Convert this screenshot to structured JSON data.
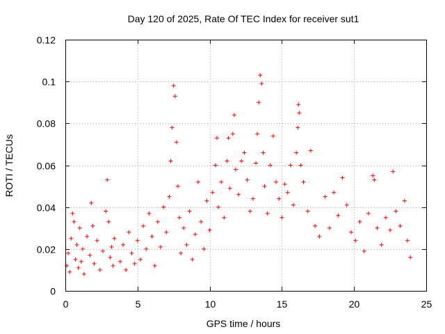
{
  "chart_data": {
    "type": "scatter",
    "title": "Day 120 of 2025, Rate Of TEC Index for receiver sut1",
    "xlabel": "GPS time / hours",
    "ylabel": "ROTI / TECUs",
    "xlim": [
      0,
      25
    ],
    "ylim": [
      0,
      0.12
    ],
    "x_ticks": [
      0,
      5,
      10,
      15,
      20,
      25
    ],
    "x_tick_labels": [
      "0",
      "5",
      "10",
      "15",
      "20",
      "25"
    ],
    "y_ticks": [
      0,
      0.02,
      0.04,
      0.06,
      0.08,
      0.1,
      0.12
    ],
    "y_tick_labels": [
      "0",
      "0.02",
      "0.04",
      "0.06",
      "0.08",
      "0.1",
      "0.12"
    ],
    "grid": true,
    "marker": "+",
    "series_color": "#ff0000",
    "series": [
      {
        "name": "ROTI",
        "points": [
          [
            0.1,
            0.012
          ],
          [
            0.2,
            0.018
          ],
          [
            0.3,
            0.009
          ],
          [
            0.4,
            0.025
          ],
          [
            0.5,
            0.037
          ],
          [
            0.6,
            0.033
          ],
          [
            0.7,
            0.015
          ],
          [
            0.8,
            0.022
          ],
          [
            0.9,
            0.011
          ],
          [
            1.0,
            0.03
          ],
          [
            1.1,
            0.014
          ],
          [
            1.2,
            0.02
          ],
          [
            1.3,
            0.008
          ],
          [
            1.5,
            0.026
          ],
          [
            1.7,
            0.017
          ],
          [
            1.8,
            0.042
          ],
          [
            1.9,
            0.031
          ],
          [
            2.0,
            0.013
          ],
          [
            2.2,
            0.024
          ],
          [
            2.4,
            0.01
          ],
          [
            2.6,
            0.019
          ],
          [
            2.8,
            0.038
          ],
          [
            2.9,
            0.053
          ],
          [
            3.0,
            0.033
          ],
          [
            3.1,
            0.016
          ],
          [
            3.2,
            0.021
          ],
          [
            3.3,
            0.012
          ],
          [
            3.4,
            0.025
          ],
          [
            3.8,
            0.014
          ],
          [
            4.0,
            0.022
          ],
          [
            4.2,
            0.01
          ],
          [
            4.4,
            0.028
          ],
          [
            4.6,
            0.018
          ],
          [
            4.8,
            0.013
          ],
          [
            5.0,
            0.024
          ],
          [
            5.2,
            0.015
          ],
          [
            5.4,
            0.031
          ],
          [
            5.6,
            0.02
          ],
          [
            5.8,
            0.037
          ],
          [
            6.0,
            0.026
          ],
          [
            6.2,
            0.012
          ],
          [
            6.4,
            0.033
          ],
          [
            6.6,
            0.021
          ],
          [
            6.8,
            0.04
          ],
          [
            7.0,
            0.028
          ],
          [
            7.2,
            0.045
          ],
          [
            7.3,
            0.062
          ],
          [
            7.4,
            0.078
          ],
          [
            7.5,
            0.098
          ],
          [
            7.6,
            0.093
          ],
          [
            7.7,
            0.071
          ],
          [
            7.8,
            0.05
          ],
          [
            7.9,
            0.035
          ],
          [
            8.0,
            0.018
          ],
          [
            8.2,
            0.03
          ],
          [
            8.4,
            0.022
          ],
          [
            8.6,
            0.038
          ],
          [
            8.8,
            0.015
          ],
          [
            9.0,
            0.027
          ],
          [
            9.2,
            0.052
          ],
          [
            9.4,
            0.033
          ],
          [
            9.6,
            0.02
          ],
          [
            9.8,
            0.043
          ],
          [
            10.0,
            0.029
          ],
          [
            10.2,
            0.047
          ],
          [
            10.4,
            0.06
          ],
          [
            10.5,
            0.073
          ],
          [
            10.6,
            0.04
          ],
          [
            10.8,
            0.052
          ],
          [
            11.0,
            0.035
          ],
          [
            11.2,
            0.062
          ],
          [
            11.3,
            0.073
          ],
          [
            11.4,
            0.049
          ],
          [
            11.6,
            0.075
          ],
          [
            11.7,
            0.084
          ],
          [
            11.8,
            0.058
          ],
          [
            12.0,
            0.046
          ],
          [
            12.2,
            0.062
          ],
          [
            12.4,
            0.066
          ],
          [
            12.6,
            0.053
          ],
          [
            12.8,
            0.038
          ],
          [
            13.0,
            0.044
          ],
          [
            13.2,
            0.061
          ],
          [
            13.3,
            0.075
          ],
          [
            13.4,
            0.09
          ],
          [
            13.5,
            0.103
          ],
          [
            13.6,
            0.099
          ],
          [
            13.7,
            0.066
          ],
          [
            13.8,
            0.05
          ],
          [
            14.0,
            0.037
          ],
          [
            14.2,
            0.06
          ],
          [
            14.4,
            0.074
          ],
          [
            14.6,
            0.052
          ],
          [
            14.8,
            0.044
          ],
          [
            15.0,
            0.035
          ],
          [
            15.2,
            0.051
          ],
          [
            15.4,
            0.047
          ],
          [
            15.6,
            0.06
          ],
          [
            15.8,
            0.041
          ],
          [
            16.0,
            0.066
          ],
          [
            16.1,
            0.078
          ],
          [
            16.15,
            0.089
          ],
          [
            16.2,
            0.085
          ],
          [
            16.3,
            0.06
          ],
          [
            16.5,
            0.052
          ],
          [
            16.8,
            0.038
          ],
          [
            17.0,
            0.067
          ],
          [
            17.3,
            0.031
          ],
          [
            17.6,
            0.026
          ],
          [
            18.0,
            0.045
          ],
          [
            18.3,
            0.03
          ],
          [
            18.6,
            0.047
          ],
          [
            18.9,
            0.036
          ],
          [
            19.2,
            0.054
          ],
          [
            19.5,
            0.041
          ],
          [
            19.8,
            0.028
          ],
          [
            20.1,
            0.024
          ],
          [
            20.4,
            0.033
          ],
          [
            20.7,
            0.019
          ],
          [
            21.0,
            0.037
          ],
          [
            21.3,
            0.055
          ],
          [
            21.4,
            0.053
          ],
          [
            21.6,
            0.03
          ],
          [
            21.9,
            0.022
          ],
          [
            22.2,
            0.035
          ],
          [
            22.5,
            0.029
          ],
          [
            22.7,
            0.057
          ],
          [
            22.9,
            0.038
          ],
          [
            23.2,
            0.031
          ],
          [
            23.5,
            0.043
          ],
          [
            23.7,
            0.024
          ],
          [
            23.9,
            0.016
          ]
        ]
      }
    ]
  }
}
